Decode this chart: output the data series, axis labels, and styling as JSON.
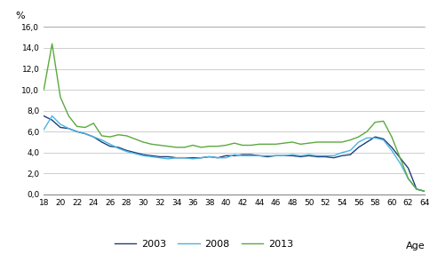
{
  "ages": [
    18,
    19,
    20,
    21,
    22,
    23,
    24,
    25,
    26,
    27,
    28,
    29,
    30,
    31,
    32,
    33,
    34,
    35,
    36,
    37,
    38,
    39,
    40,
    41,
    42,
    43,
    44,
    45,
    46,
    47,
    48,
    49,
    50,
    51,
    52,
    53,
    54,
    55,
    56,
    57,
    58,
    59,
    60,
    61,
    62,
    63,
    64
  ],
  "y2003": [
    7.5,
    7.1,
    6.4,
    6.3,
    6.0,
    5.8,
    5.5,
    5.0,
    4.6,
    4.5,
    4.2,
    4.0,
    3.8,
    3.7,
    3.6,
    3.6,
    3.5,
    3.5,
    3.5,
    3.5,
    3.6,
    3.5,
    3.7,
    3.7,
    3.8,
    3.8,
    3.7,
    3.6,
    3.7,
    3.7,
    3.7,
    3.6,
    3.7,
    3.6,
    3.6,
    3.5,
    3.7,
    3.8,
    4.5,
    5.0,
    5.5,
    5.3,
    4.5,
    3.5,
    2.5,
    0.5,
    0.3
  ],
  "y2008": [
    6.2,
    7.5,
    6.7,
    6.3,
    6.0,
    5.8,
    5.5,
    5.2,
    4.8,
    4.4,
    4.1,
    3.9,
    3.7,
    3.6,
    3.5,
    3.4,
    3.5,
    3.5,
    3.4,
    3.5,
    3.6,
    3.5,
    3.5,
    3.8,
    3.7,
    3.7,
    3.7,
    3.7,
    3.7,
    3.7,
    3.8,
    3.7,
    3.8,
    3.7,
    3.7,
    3.7,
    4.0,
    4.2,
    5.0,
    5.4,
    5.4,
    5.2,
    4.2,
    3.0,
    1.5,
    0.5,
    0.3
  ],
  "y2013": [
    10.0,
    14.4,
    9.3,
    7.5,
    6.5,
    6.4,
    6.8,
    5.6,
    5.5,
    5.7,
    5.6,
    5.3,
    5.0,
    4.8,
    4.7,
    4.6,
    4.5,
    4.5,
    4.7,
    4.5,
    4.6,
    4.6,
    4.7,
    4.9,
    4.7,
    4.7,
    4.8,
    4.8,
    4.8,
    4.9,
    5.0,
    4.8,
    4.9,
    5.0,
    5.0,
    5.0,
    5.0,
    5.2,
    5.5,
    6.0,
    6.9,
    7.0,
    5.5,
    3.5,
    1.5,
    0.5,
    0.3
  ],
  "color_2003": "#1f3d7a",
  "color_2008": "#4ab5e3",
  "color_2013": "#5aaa3c",
  "ylim": [
    0,
    16
  ],
  "yticks": [
    0.0,
    2.0,
    4.0,
    6.0,
    8.0,
    10.0,
    12.0,
    14.0,
    16.0
  ],
  "xticks": [
    18,
    20,
    22,
    24,
    26,
    28,
    30,
    32,
    34,
    36,
    38,
    40,
    42,
    44,
    46,
    48,
    50,
    52,
    54,
    56,
    58,
    60,
    62,
    64
  ],
  "ylabel": "%",
  "xlabel": "Age",
  "legend_labels": [
    "2003",
    "2008",
    "2013"
  ]
}
